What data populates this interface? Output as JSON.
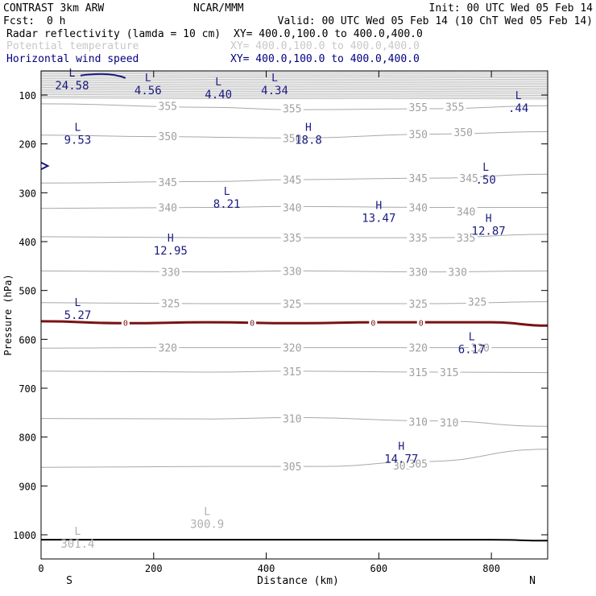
{
  "header": {
    "model": "CONTRAST  3km ARW",
    "center": "NCAR/MMM",
    "init": "Init: 00 UTC Wed 05 Feb 14",
    "fcst_label": "Fcst:",
    "fcst_value": "0 h",
    "valid": "Valid: 00 UTC Wed 05 Feb 14 (10 ChT Wed 05 Feb 14)"
  },
  "fields": [
    {
      "name": "Radar reflectivity (lamda = 10 cm)",
      "xy": "XY= 400.0,100.0 to 400.0,400.0",
      "color": "#000000"
    },
    {
      "name": "Potential temperature",
      "xy": "XY= 400.0,100.0 to 400.0,400.0",
      "color": "#c8c8c8"
    },
    {
      "name": "Horizontal wind speed",
      "xy": "XY= 400.0,100.0 to 400.0,400.0",
      "color": "#000080"
    }
  ],
  "colors": {
    "theta": "#a8a8a8",
    "theta_label": "#a0a0a0",
    "wind": "#1a1a80",
    "freezing": "#7a1212",
    "axis": "#000000",
    "ground": "#000000"
  },
  "chart_data": {
    "type": "line",
    "xlabel": "Distance (km)",
    "ylabel": "Pressure (hPa)",
    "xlim": [
      0,
      900
    ],
    "ylim": [
      1050,
      50
    ],
    "x_ticks": [
      0,
      200,
      400,
      600,
      800
    ],
    "y_ticks": [
      100,
      200,
      300,
      400,
      500,
      600,
      700,
      800,
      900,
      1000
    ],
    "x_end_labels": {
      "left": "S",
      "right": "N"
    },
    "potential_temperature": [
      {
        "level": "305",
        "x": [
          0,
          300,
          500,
          680,
          900
        ],
        "p": [
          862,
          860,
          860,
          850,
          825
        ],
        "labels": [
          {
            "x": 446,
            "p": 860
          },
          {
            "x": 642,
            "p": 858
          },
          {
            "x": 670,
            "p": 854
          }
        ]
      },
      {
        "level": "310",
        "x": [
          0,
          300,
          450,
          700,
          900
        ],
        "p": [
          762,
          763,
          760,
          767,
          778
        ],
        "labels": [
          {
            "x": 446,
            "p": 762
          },
          {
            "x": 670,
            "p": 768
          },
          {
            "x": 725,
            "p": 770
          }
        ]
      },
      {
        "level": "315",
        "x": [
          0,
          300,
          450,
          700,
          900
        ],
        "p": [
          665,
          667,
          665,
          667,
          668
        ],
        "labels": [
          {
            "x": 446,
            "p": 665
          },
          {
            "x": 670,
            "p": 667
          },
          {
            "x": 725,
            "p": 667
          }
        ]
      },
      {
        "level": "320",
        "x": [
          0,
          200,
          450,
          700,
          900
        ],
        "p": [
          618,
          617,
          617,
          617,
          617
        ],
        "labels": [
          {
            "x": 225,
            "p": 617
          },
          {
            "x": 446,
            "p": 617
          },
          {
            "x": 670,
            "p": 617
          },
          {
            "x": 780,
            "p": 617
          }
        ]
      },
      {
        "level": "325",
        "x": [
          0,
          300,
          450,
          700,
          900
        ],
        "p": [
          525,
          527,
          527,
          527,
          523
        ],
        "labels": [
          {
            "x": 230,
            "p": 526
          },
          {
            "x": 446,
            "p": 527
          },
          {
            "x": 670,
            "p": 527
          },
          {
            "x": 775,
            "p": 523
          }
        ]
      },
      {
        "level": "330",
        "x": [
          0,
          300,
          450,
          700,
          900
        ],
        "p": [
          460,
          462,
          460,
          462,
          460
        ],
        "labels": [
          {
            "x": 230,
            "p": 462
          },
          {
            "x": 446,
            "p": 460
          },
          {
            "x": 670,
            "p": 462
          },
          {
            "x": 740,
            "p": 462
          }
        ]
      },
      {
        "level": "335",
        "x": [
          0,
          300,
          450,
          700,
          900
        ],
        "p": [
          390,
          392,
          392,
          392,
          385
        ],
        "labels": [
          {
            "x": 446,
            "p": 392
          },
          {
            "x": 670,
            "p": 392
          },
          {
            "x": 755,
            "p": 392
          }
        ]
      },
      {
        "level": "340",
        "x": [
          0,
          300,
          450,
          700,
          900
        ],
        "p": [
          332,
          330,
          328,
          330,
          330
        ],
        "labels": [
          {
            "x": 225,
            "p": 330
          },
          {
            "x": 446,
            "p": 330
          },
          {
            "x": 670,
            "p": 330
          },
          {
            "x": 755,
            "p": 338
          }
        ]
      },
      {
        "level": "345",
        "x": [
          0,
          300,
          450,
          700,
          900
        ],
        "p": [
          280,
          277,
          273,
          270,
          262
        ],
        "labels": [
          {
            "x": 225,
            "p": 278
          },
          {
            "x": 446,
            "p": 273
          },
          {
            "x": 670,
            "p": 270
          },
          {
            "x": 760,
            "p": 270
          }
        ]
      },
      {
        "level": "350",
        "x": [
          0,
          200,
          450,
          700,
          900
        ],
        "p": [
          182,
          185,
          188,
          180,
          175
        ],
        "labels": [
          {
            "x": 225,
            "p": 184
          },
          {
            "x": 446,
            "p": 188
          },
          {
            "x": 670,
            "p": 180
          },
          {
            "x": 750,
            "p": 176
          }
        ]
      },
      {
        "level": "355",
        "x": [
          0,
          300,
          450,
          700,
          900
        ],
        "p": [
          118,
          125,
          130,
          128,
          122
        ],
        "labels": [
          {
            "x": 225,
            "p": 122
          },
          {
            "x": 446,
            "p": 127
          },
          {
            "x": 670,
            "p": 125
          },
          {
            "x": 735,
            "p": 124
          }
        ]
      }
    ],
    "freezing_level": {
      "level": "0",
      "x": [
        0,
        150,
        300,
        450,
        600,
        800,
        900
      ],
      "p": [
        563,
        567,
        565,
        567,
        565,
        565,
        572
      ],
      "labels": [
        {
          "x": 150,
          "p": 566
        },
        {
          "x": 375,
          "p": 566
        },
        {
          "x": 590,
          "p": 566
        },
        {
          "x": 675,
          "p": 566
        }
      ]
    },
    "ground_pressure": {
      "x": [
        0,
        800,
        900
      ],
      "p": [
        1010,
        1010,
        1012
      ]
    },
    "extrema": [
      {
        "kind": "L",
        "value": "24.58",
        "x": 55,
        "p": 62,
        "field": "wind"
      },
      {
        "kind": "L",
        "value": "4.56",
        "x": 190,
        "p": 72,
        "field": "wind"
      },
      {
        "kind": "L",
        "value": "4.40",
        "x": 315,
        "p": 80,
        "field": "wind"
      },
      {
        "kind": "L",
        "value": "4.34",
        "x": 415,
        "p": 72,
        "field": "wind"
      },
      {
        "kind": "L",
        "value": ".44",
        "x": 848,
        "p": 108,
        "field": "wind"
      },
      {
        "kind": "L",
        "value": "9.53",
        "x": 65,
        "p": 173,
        "field": "wind"
      },
      {
        "kind": "H",
        "value": "18.8",
        "x": 475,
        "p": 173,
        "field": "wind"
      },
      {
        "kind": "L",
        "value": ".50",
        "x": 790,
        "p": 255,
        "field": "wind"
      },
      {
        "kind": "L",
        "value": "8.21",
        "x": 330,
        "p": 304,
        "field": "wind"
      },
      {
        "kind": "H",
        "value": "13.47",
        "x": 600,
        "p": 333,
        "field": "wind"
      },
      {
        "kind": "H",
        "value": "12.87",
        "x": 795,
        "p": 360,
        "field": "wind"
      },
      {
        "kind": "H",
        "value": "12.95",
        "x": 230,
        "p": 400,
        "field": "wind"
      },
      {
        "kind": "L",
        "value": "5.27",
        "x": 65,
        "p": 532,
        "field": "wind"
      },
      {
        "kind": "L",
        "value": "6.17",
        "x": 765,
        "p": 602,
        "field": "wind"
      },
      {
        "kind": "H",
        "value": "14.77",
        "x": 640,
        "p": 826,
        "field": "wind"
      },
      {
        "kind": "L",
        "value": "300.9",
        "x": 295,
        "p": 960,
        "field": "theta"
      },
      {
        "kind": "L",
        "value": "301.4",
        "x": 65,
        "p": 1000,
        "field": "theta"
      }
    ]
  }
}
